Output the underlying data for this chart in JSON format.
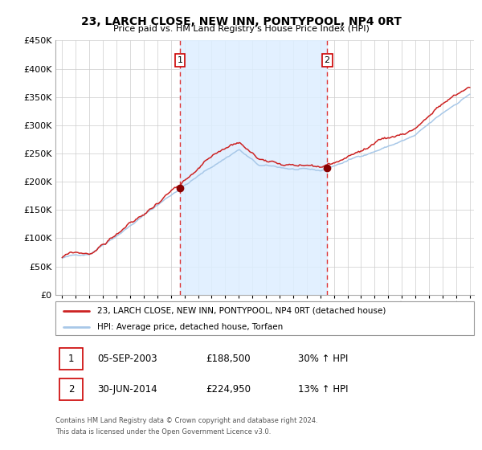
{
  "title": "23, LARCH CLOSE, NEW INN, PONTYPOOL, NP4 0RT",
  "subtitle": "Price paid vs. HM Land Registry's House Price Index (HPI)",
  "background_color": "#ffffff",
  "plot_bg_color": "#ffffff",
  "grid_color": "#cccccc",
  "ylim": [
    0,
    450000
  ],
  "yticks": [
    0,
    50000,
    100000,
    150000,
    200000,
    250000,
    300000,
    350000,
    400000,
    450000
  ],
  "ytick_labels": [
    "£0",
    "£50K",
    "£100K",
    "£150K",
    "£200K",
    "£250K",
    "£300K",
    "£350K",
    "£400K",
    "£450K"
  ],
  "xlim_start": 1994.5,
  "xlim_end": 2025.3,
  "xticks": [
    1995,
    1996,
    1997,
    1998,
    1999,
    2000,
    2001,
    2002,
    2003,
    2004,
    2005,
    2006,
    2007,
    2008,
    2009,
    2010,
    2011,
    2012,
    2013,
    2014,
    2015,
    2016,
    2017,
    2018,
    2019,
    2020,
    2021,
    2022,
    2023,
    2024,
    2025
  ],
  "hpi_line_color": "#a8c8e8",
  "price_line_color": "#cc2222",
  "marker_color": "#880000",
  "vline_color": "#dd3333",
  "shade_color": "#ddeeff",
  "event1_x": 2003.675,
  "event1_y": 188500,
  "event2_x": 2014.5,
  "event2_y": 224950,
  "legend_line1": "23, LARCH CLOSE, NEW INN, PONTYPOOL, NP4 0RT (detached house)",
  "legend_line2": "HPI: Average price, detached house, Torfaen",
  "event1_date": "05-SEP-2003",
  "event1_price": "£188,500",
  "event1_info": "30% ↑ HPI",
  "event2_date": "30-JUN-2014",
  "event2_price": "£224,950",
  "event2_info": "13% ↑ HPI",
  "footer1": "Contains HM Land Registry data © Crown copyright and database right 2024.",
  "footer2": "This data is licensed under the Open Government Licence v3.0.",
  "box_color": "#cc0000"
}
